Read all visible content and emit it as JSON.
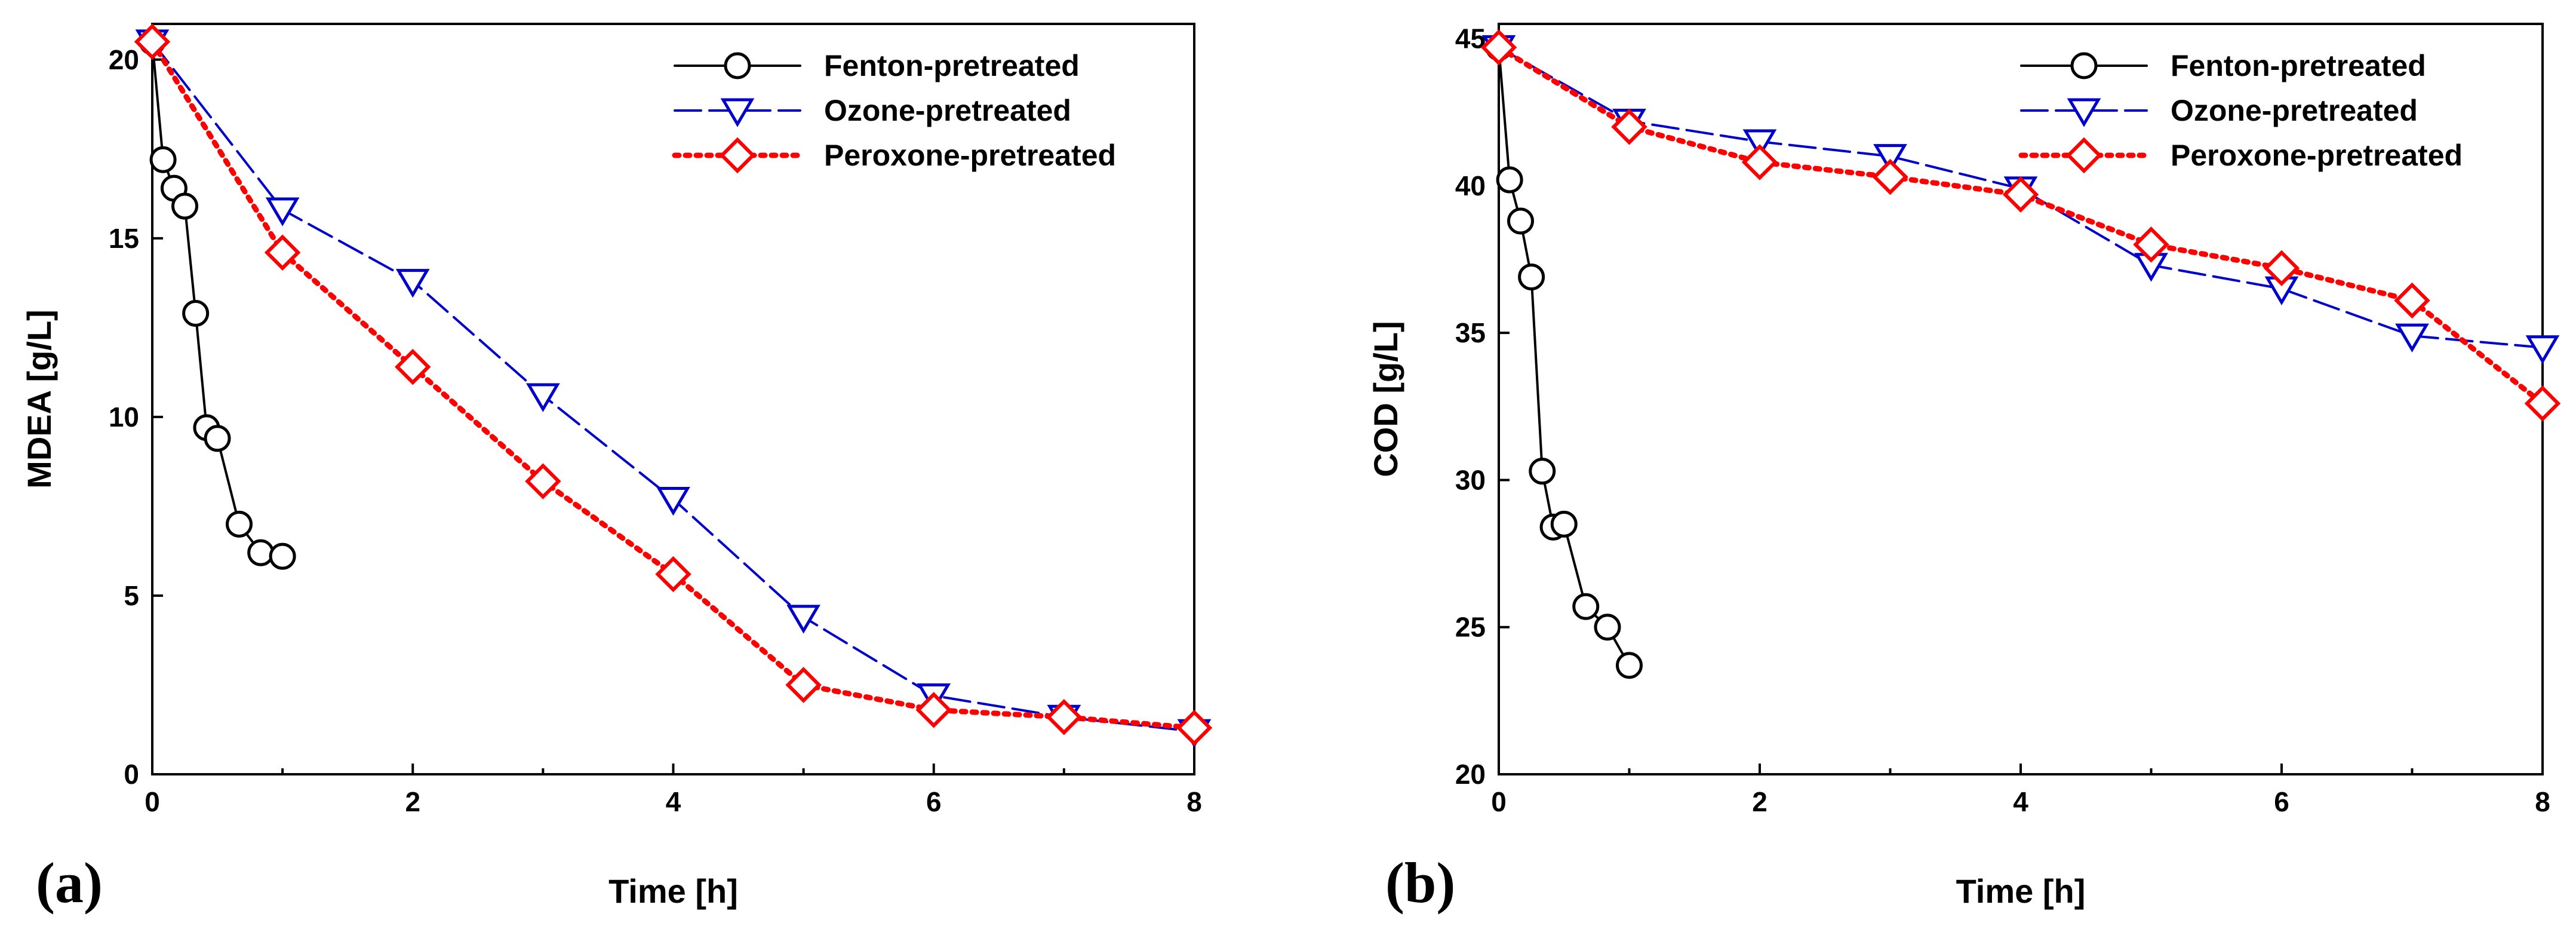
{
  "colors": {
    "fenton": "#000000",
    "ozone": "#0000cc",
    "peroxone": "#ff0000"
  },
  "chart_data": [
    {
      "type": "line",
      "panel_label": "(a)",
      "xlabel": "Time [h]",
      "ylabel": "MDEA [g/L]",
      "xlim": [
        0,
        8
      ],
      "ylim": [
        0,
        21
      ],
      "xticks": [
        "0",
        "2",
        "4",
        "6",
        "8"
      ],
      "yticks": [
        "0",
        "5",
        "10",
        "15",
        "20"
      ],
      "legend_position": "top-right",
      "series": [
        {
          "name": "Fenton-pretreated",
          "marker": "circle",
          "style": "solid",
          "x": [
            0,
            0.083,
            0.167,
            0.25,
            0.333,
            0.417,
            0.5,
            0.667,
            0.833,
            1
          ],
          "y": [
            20.5,
            17.2,
            16.4,
            15.9,
            12.9,
            9.7,
            9.4,
            7.0,
            6.2,
            6.1
          ]
        },
        {
          "name": "Ozone-pretreated",
          "marker": "triangle-down",
          "style": "dashed",
          "x": [
            0,
            1,
            2,
            3,
            4,
            5,
            6,
            7,
            8
          ],
          "y": [
            20.5,
            15.8,
            13.8,
            10.6,
            7.7,
            4.4,
            2.2,
            1.6,
            1.2
          ]
        },
        {
          "name": "Peroxone-pretreated",
          "marker": "diamond",
          "style": "dotted",
          "x": [
            0,
            1,
            2,
            3,
            4,
            5,
            6,
            7,
            8
          ],
          "y": [
            20.5,
            14.6,
            11.4,
            8.2,
            5.6,
            2.5,
            1.8,
            1.6,
            1.3
          ]
        }
      ]
    },
    {
      "type": "line",
      "panel_label": "(b)",
      "xlabel": "Time [h]",
      "ylabel": "COD [g/L]",
      "xlim": [
        0,
        8
      ],
      "ylim": [
        20,
        45.5
      ],
      "xticks": [
        "0",
        "2",
        "4",
        "6",
        "8"
      ],
      "yticks": [
        "20",
        "25",
        "30",
        "35",
        "40",
        "45"
      ],
      "legend_position": "top-right",
      "series": [
        {
          "name": "Fenton-pretreated",
          "marker": "circle",
          "style": "solid",
          "x": [
            0,
            0.083,
            0.167,
            0.25,
            0.333,
            0.417,
            0.5,
            0.667,
            0.833,
            1
          ],
          "y": [
            44.7,
            40.2,
            38.8,
            36.9,
            30.3,
            28.4,
            28.5,
            25.7,
            25.0,
            23.7
          ]
        },
        {
          "name": "Ozone-pretreated",
          "marker": "triangle-down",
          "style": "dashed",
          "x": [
            0,
            1,
            2,
            3,
            4,
            5,
            6,
            7,
            8
          ],
          "y": [
            44.7,
            42.2,
            41.5,
            41.0,
            39.9,
            37.3,
            36.5,
            34.9,
            34.5
          ]
        },
        {
          "name": "Peroxone-pretreated",
          "marker": "diamond",
          "style": "dotted",
          "x": [
            0,
            1,
            2,
            3,
            4,
            5,
            6,
            7,
            8
          ],
          "y": [
            44.7,
            42.0,
            40.8,
            40.3,
            39.7,
            38.0,
            37.2,
            36.1,
            32.6
          ]
        }
      ]
    }
  ]
}
